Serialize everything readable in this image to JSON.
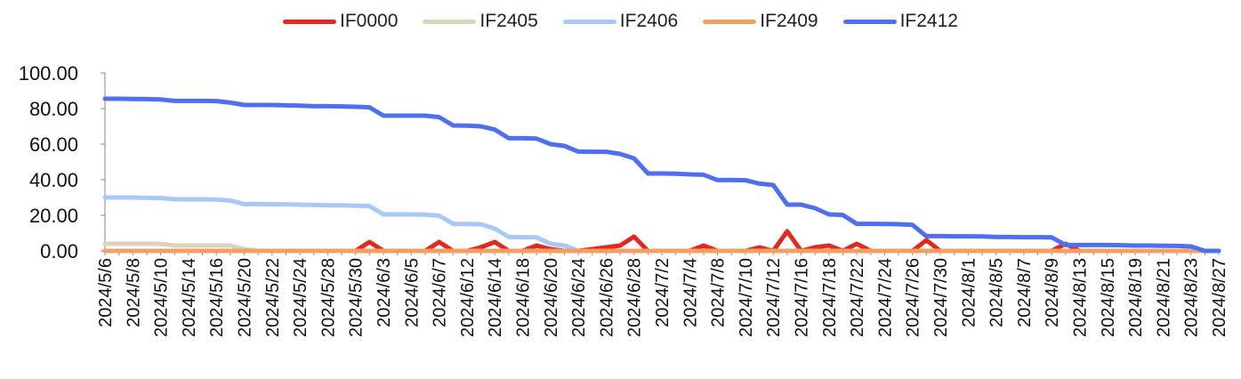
{
  "chart_data": {
    "type": "line",
    "title": "",
    "xlabel": "",
    "ylabel": "",
    "ylim": [
      0,
      100
    ],
    "y_ticks": [
      "0.00",
      "20.00",
      "40.00",
      "60.00",
      "80.00",
      "100.00"
    ],
    "grid": false,
    "legend_position": "top-center",
    "x": [
      "2024/5/6",
      "2024/5/7",
      "2024/5/8",
      "2024/5/9",
      "2024/5/10",
      "2024/5/13",
      "2024/5/14",
      "2024/5/15",
      "2024/5/16",
      "2024/5/17",
      "2024/5/20",
      "2024/5/21",
      "2024/5/22",
      "2024/5/23",
      "2024/5/24",
      "2024/5/27",
      "2024/5/28",
      "2024/5/29",
      "2024/5/30",
      "2024/5/31",
      "2024/6/3",
      "2024/6/4",
      "2024/6/5",
      "2024/6/6",
      "2024/6/7",
      "2024/6/11",
      "2024/6/12",
      "2024/6/13",
      "2024/6/14",
      "2024/6/17",
      "2024/6/18",
      "2024/6/19",
      "2024/6/20",
      "2024/6/21",
      "2024/6/24",
      "2024/6/25",
      "2024/6/26",
      "2024/6/27",
      "2024/6/28",
      "2024/7/1",
      "2024/7/2",
      "2024/7/3",
      "2024/7/4",
      "2024/7/5",
      "2024/7/8",
      "2024/7/9",
      "2024/7/10",
      "2024/7/11",
      "2024/7/12",
      "2024/7/15",
      "2024/7/16",
      "2024/7/17",
      "2024/7/18",
      "2024/7/19",
      "2024/7/22",
      "2024/7/23",
      "2024/7/24",
      "2024/7/25",
      "2024/7/26",
      "2024/7/29",
      "2024/7/30",
      "2024/7/31",
      "2024/8/1",
      "2024/8/2",
      "2024/8/5",
      "2024/8/6",
      "2024/8/7",
      "2024/8/8",
      "2024/8/9",
      "2024/8/12",
      "2024/8/13",
      "2024/8/14",
      "2024/8/15",
      "2024/8/16",
      "2024/8/19",
      "2024/8/20",
      "2024/8/21",
      "2024/8/22",
      "2024/8/23",
      "2024/8/26",
      "2024/8/27"
    ],
    "x_tick_labels": [
      "2024/5/6",
      "2024/5/8",
      "2024/5/10",
      "2024/5/14",
      "2024/5/16",
      "2024/5/20",
      "2024/5/22",
      "2024/5/24",
      "2024/5/28",
      "2024/5/30",
      "2024/6/3",
      "2024/6/5",
      "2024/6/7",
      "2024/6/12",
      "2024/6/14",
      "2024/6/18",
      "2024/6/20",
      "2024/6/24",
      "2024/6/26",
      "2024/6/28",
      "2024/7/2",
      "2024/7/4",
      "2024/7/8",
      "2024/7/10",
      "2024/7/12",
      "2024/7/16",
      "2024/7/18",
      "2024/7/22",
      "2024/7/24",
      "2024/7/26",
      "2024/7/30",
      "2024/8/1",
      "2024/8/5",
      "2024/8/7",
      "2024/8/9",
      "2024/8/13",
      "2024/8/15",
      "2024/8/19",
      "2024/8/21",
      "2024/8/23",
      "2024/8/27"
    ],
    "series": [
      {
        "name": "IF0000",
        "color": "#e02a1f",
        "values": [
          0,
          0,
          0,
          0,
          0,
          0,
          0,
          0,
          0,
          0,
          0,
          0,
          0,
          0,
          0,
          0,
          0,
          0,
          0,
          5,
          0,
          0,
          0,
          0,
          5,
          0,
          0,
          2,
          5,
          0,
          0,
          3,
          1,
          0,
          0,
          1,
          2,
          3,
          8,
          0,
          0,
          0,
          0,
          3,
          0,
          0,
          0,
          2,
          0,
          11,
          0,
          2,
          3,
          0,
          4,
          0,
          0,
          0,
          0,
          6,
          0,
          0,
          0,
          0,
          0,
          0,
          0,
          0,
          0,
          4,
          0,
          0,
          0,
          0,
          0,
          0,
          0,
          0,
          0,
          0,
          0
        ]
      },
      {
        "name": "IF2405",
        "color": "#ddd3bc",
        "values": [
          4,
          4,
          4,
          4,
          4,
          3,
          3,
          3,
          3,
          3,
          1,
          0,
          0,
          0,
          0,
          0,
          0,
          0,
          0,
          0,
          0,
          0,
          0,
          0,
          0,
          0,
          0,
          0,
          0,
          0,
          0,
          0,
          0,
          0,
          0,
          0,
          0,
          0,
          0,
          0,
          0,
          0,
          0,
          0,
          0,
          0,
          0,
          0,
          0,
          0,
          0,
          0,
          0,
          0,
          0,
          0,
          0,
          0,
          0,
          0,
          0,
          0,
          0,
          0,
          0,
          0,
          0,
          0,
          0,
          0,
          0,
          0,
          0,
          0,
          0,
          0,
          0,
          0,
          0,
          0,
          0
        ]
      },
      {
        "name": "IF2406",
        "color": "#a8c8f5",
        "values": [
          30,
          30,
          30,
          29.8,
          29.7,
          29,
          29,
          29,
          28.9,
          28.3,
          26.3,
          26.3,
          26.2,
          26.1,
          26,
          25.8,
          25.6,
          25.6,
          25.4,
          25.2,
          20.5,
          20.5,
          20.5,
          20.4,
          19.8,
          15.2,
          15.1,
          15,
          12.5,
          7.8,
          7.7,
          7.6,
          4,
          3,
          0,
          0,
          0,
          0,
          0,
          0,
          0,
          0,
          0,
          0,
          0,
          0,
          0,
          0,
          0,
          0,
          0,
          0,
          0,
          0,
          0,
          0,
          0,
          0,
          0,
          0,
          0,
          0,
          0,
          0,
          0,
          0,
          0,
          0,
          0,
          0,
          0,
          0,
          0,
          0,
          0,
          0,
          0,
          0,
          0,
          0,
          0
        ]
      },
      {
        "name": "IF2409",
        "color": "#f5a05e",
        "values": [
          0,
          0,
          0,
          0,
          0,
          0,
          0,
          0,
          0,
          0,
          0,
          0,
          0,
          0,
          0,
          0,
          0,
          0,
          0,
          0,
          0,
          0,
          0,
          0,
          0,
          0,
          0,
          0,
          0,
          0,
          0,
          0,
          0,
          0,
          0,
          0,
          0,
          0,
          0,
          0,
          0,
          0,
          0,
          0,
          0,
          0,
          0,
          0,
          0,
          0,
          0,
          0,
          0,
          0,
          0,
          0,
          0,
          0,
          0,
          0,
          0,
          0,
          0,
          0,
          0,
          0,
          0,
          0,
          0,
          0,
          0,
          0,
          0,
          0,
          0,
          0,
          0,
          0,
          0,
          0,
          0
        ]
      },
      {
        "name": "IF2412",
        "color": "#4f6ff0",
        "values": [
          85.5,
          85.5,
          85.4,
          85.3,
          85.1,
          84.3,
          84.3,
          84.3,
          84.2,
          83.3,
          82,
          82,
          82,
          81.8,
          81.6,
          81.3,
          81.3,
          81.2,
          81,
          80.7,
          76,
          76,
          76,
          76,
          75.2,
          70.5,
          70.4,
          70,
          68.2,
          63.3,
          63.3,
          63.1,
          60,
          59,
          55.8,
          55.7,
          55.7,
          54.5,
          52,
          43.5,
          43.5,
          43.4,
          43,
          42.8,
          39.8,
          39.8,
          39.7,
          37.8,
          37,
          26,
          26,
          24,
          20.5,
          20.2,
          15.2,
          15.2,
          15.1,
          15,
          14.6,
          8.3,
          8.3,
          8.2,
          8.2,
          8.1,
          7.8,
          7.8,
          7.7,
          7.7,
          7.6,
          3.3,
          3.3,
          3.3,
          3.3,
          3.2,
          3,
          3,
          2.9,
          2.8,
          2.5,
          0,
          0
        ]
      }
    ]
  }
}
